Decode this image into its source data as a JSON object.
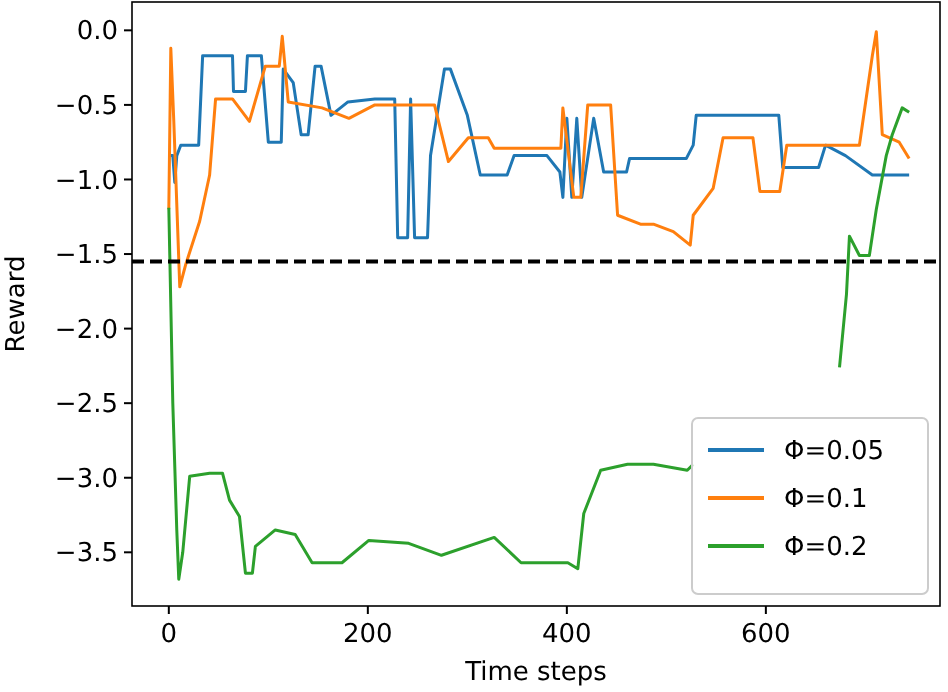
{
  "chart_data": {
    "type": "line",
    "xlabel": "Time steps",
    "ylabel": "Reward",
    "xlim": [
      -37,
      775
    ],
    "ylim": [
      -3.86,
      0.19
    ],
    "xticks": [
      0,
      200,
      400,
      600
    ],
    "yticks": [
      {
        "value": -3.5,
        "label": "−3.5"
      },
      {
        "value": -3,
        "label": "−3.0"
      },
      {
        "value": -2.5,
        "label": "−2.5"
      },
      {
        "value": -2,
        "label": "−2.0"
      },
      {
        "value": -1.5,
        "label": "−1.5"
      },
      {
        "value": -1,
        "label": "−1.0"
      },
      {
        "value": -0.5,
        "label": "−0.5"
      },
      {
        "value": 0,
        "label": "0.0"
      }
    ],
    "legend": "bottom right",
    "grid": false,
    "line_style": "solid",
    "marker": "none",
    "ref_lines": [
      {
        "axis": "y",
        "value": -1.55,
        "color": "#000000",
        "line_style": "dashed"
      }
    ],
    "series": [
      {
        "name": "Φ=0.05",
        "color": "#1f77b4",
        "x": [
          0,
          4,
          6,
          8,
          12,
          20,
          30,
          34,
          64,
          65,
          77,
          79,
          93,
          100,
          113,
          115,
          125,
          133,
          140,
          147,
          153,
          163,
          180,
          207,
          227,
          230,
          240,
          243,
          247,
          260,
          263,
          277,
          283,
          300,
          313,
          340,
          347,
          380,
          393,
          396,
          400,
          405,
          410,
          415,
          427,
          437,
          460,
          463,
          520,
          527,
          530,
          613,
          617,
          653,
          660,
          680,
          707,
          744
        ],
        "values": [
          -0.84,
          -0.84,
          -1.02,
          -0.84,
          -0.77,
          -0.77,
          -0.77,
          -0.17,
          -0.17,
          -0.41,
          -0.41,
          -0.17,
          -0.17,
          -0.75,
          -0.75,
          -0.26,
          -0.35,
          -0.7,
          -0.7,
          -0.24,
          -0.24,
          -0.57,
          -0.48,
          -0.46,
          -0.46,
          -1.39,
          -1.39,
          -0.46,
          -1.39,
          -1.39,
          -0.84,
          -0.26,
          -0.26,
          -0.57,
          -0.97,
          -0.97,
          -0.84,
          -0.84,
          -0.95,
          -1.12,
          -0.59,
          -1.12,
          -0.59,
          -1.12,
          -0.59,
          -0.95,
          -0.95,
          -0.86,
          -0.86,
          -0.77,
          -0.57,
          -0.57,
          -0.92,
          -0.92,
          -0.77,
          -0.84,
          -0.97,
          -0.97
        ]
      },
      {
        "name": "Φ=0.1",
        "color": "#ff7f0e",
        "x": [
          0,
          2,
          5,
          11,
          17,
          31,
          41,
          47,
          64,
          81,
          97,
          111,
          114,
          120,
          154,
          181,
          207,
          267,
          281,
          301,
          321,
          327,
          394,
          396,
          407,
          414,
          421,
          444,
          451,
          474,
          487,
          507,
          524,
          527,
          547,
          557,
          587,
          594,
          614,
          621,
          694,
          707,
          711,
          717,
          734,
          744
        ],
        "values": [
          -1.2,
          -0.12,
          -0.61,
          -1.72,
          -1.57,
          -1.28,
          -0.97,
          -0.46,
          -0.46,
          -0.61,
          -0.24,
          -0.24,
          -0.04,
          -0.48,
          -0.52,
          -0.59,
          -0.5,
          -0.5,
          -0.88,
          -0.72,
          -0.72,
          -0.79,
          -0.79,
          -0.52,
          -1.12,
          -1.12,
          -0.5,
          -0.5,
          -1.24,
          -1.3,
          -1.3,
          -1.35,
          -1.44,
          -1.24,
          -1.06,
          -0.72,
          -0.72,
          -1.08,
          -1.08,
          -0.77,
          -0.77,
          -0.17,
          -0.01,
          -0.7,
          -0.75,
          -0.86
        ]
      },
      {
        "name": "Φ=0.2",
        "color": "#2ca02c",
        "x": [
          0,
          4,
          8,
          10,
          14,
          21,
          41,
          54,
          61,
          71,
          77,
          84,
          87,
          107,
          127,
          144,
          174,
          201,
          241,
          274,
          327,
          354,
          401,
          411,
          417,
          434,
          461,
          487,
          521,
          527,
          534,
          560,
          600,
          640,
          664,
          674,
          681,
          684,
          694,
          704,
          711,
          721,
          727,
          737,
          744
        ],
        "values": [
          -1.19,
          -2.5,
          -3.35,
          -3.68,
          -3.5,
          -2.99,
          -2.97,
          -2.97,
          -3.15,
          -3.26,
          -3.64,
          -3.64,
          -3.46,
          -3.35,
          -3.38,
          -3.57,
          -3.57,
          -3.42,
          -3.44,
          -3.52,
          -3.4,
          -3.57,
          -3.57,
          -3.61,
          -3.24,
          -2.95,
          -2.91,
          -2.91,
          -2.95,
          -2.91,
          null,
          null,
          null,
          null,
          null,
          -2.26,
          -1.77,
          -1.38,
          -1.51,
          -1.51,
          -1.2,
          -0.84,
          -0.7,
          -0.52,
          -0.55
        ]
      }
    ]
  }
}
